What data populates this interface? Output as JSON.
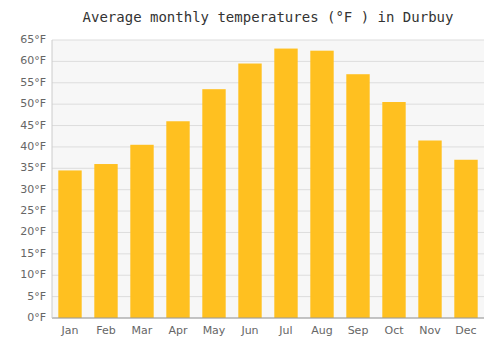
{
  "chart_data": {
    "type": "bar",
    "title": "Average monthly temperatures (°F ) in Durbuy",
    "categories": [
      "Jan",
      "Feb",
      "Mar",
      "Apr",
      "May",
      "Jun",
      "Jul",
      "Aug",
      "Sep",
      "Oct",
      "Nov",
      "Dec"
    ],
    "values": [
      34.5,
      36.0,
      40.5,
      46.0,
      53.5,
      59.5,
      63.0,
      62.5,
      57.0,
      50.5,
      41.5,
      37.0
    ],
    "color": "#FFC020",
    "ylim": [
      0,
      65
    ],
    "yticks": [
      {
        "value": 0,
        "label": "0°F"
      },
      {
        "value": 5,
        "label": "5°F"
      },
      {
        "value": 10,
        "label": "10°F"
      },
      {
        "value": 15,
        "label": "15°F"
      },
      {
        "value": 20,
        "label": "20°F"
      },
      {
        "value": 25,
        "label": "25°F"
      },
      {
        "value": 30,
        "label": "30°F"
      },
      {
        "value": 35,
        "label": "35°F"
      },
      {
        "value": 40,
        "label": "40°F"
      },
      {
        "value": 45,
        "label": "45°F"
      },
      {
        "value": 50,
        "label": "50°F"
      },
      {
        "value": 55,
        "label": "55°F"
      },
      {
        "value": 60,
        "label": "60°F"
      },
      {
        "value": 65,
        "label": "65°F"
      }
    ],
    "grid": true
  }
}
